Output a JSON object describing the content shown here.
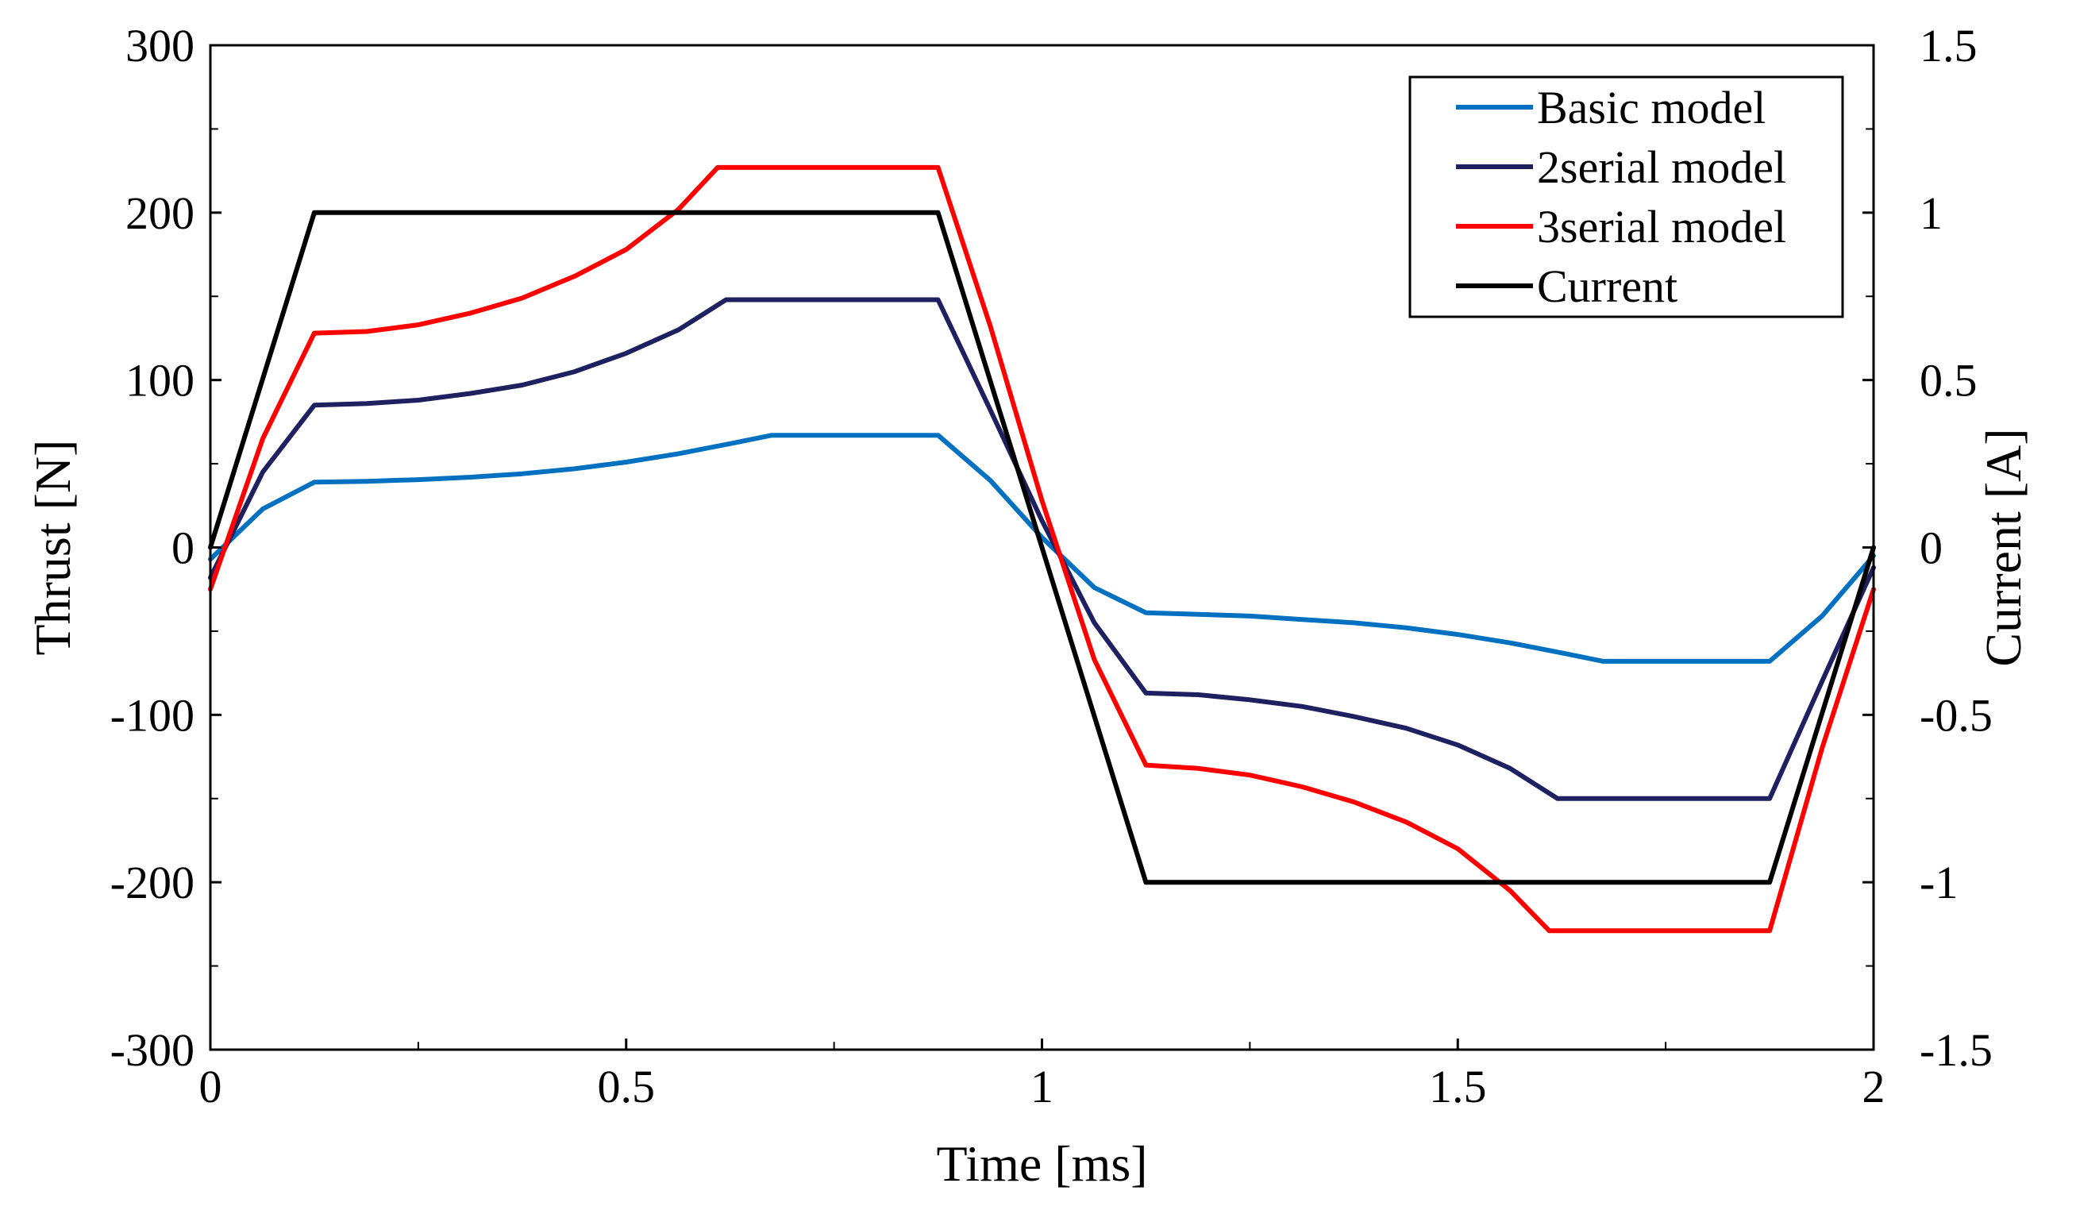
{
  "chart_data": {
    "type": "line",
    "title": "",
    "xlabel": "Time [ms]",
    "ylabel": "Thrust [N]",
    "y2label": "Current [A]",
    "xlim": [
      0,
      2
    ],
    "ylim": [
      -300,
      300
    ],
    "y2lim": [
      -1.5,
      1.5
    ],
    "grid": false,
    "legend_position": "top-right",
    "x_ticks": [
      0,
      0.5,
      1,
      1.5,
      2
    ],
    "x_tick_labels": [
      "0",
      "0.5",
      "1",
      "1.5",
      "2"
    ],
    "y_ticks": [
      300,
      200,
      100,
      0,
      -100,
      -200,
      -300
    ],
    "y_tick_labels": [
      "300",
      "200",
      "100",
      "0",
      "-100",
      "-200",
      "-300"
    ],
    "y2_ticks": [
      1.5,
      1,
      0.5,
      0,
      -0.5,
      -1,
      -1.5
    ],
    "y2_tick_labels": [
      "1.5",
      "1",
      "0.5",
      "0",
      "-0.5",
      "-1",
      "-1.5"
    ],
    "series": [
      {
        "name": "Basic model",
        "axis": "left",
        "color": "#0070c0",
        "x": [
          0,
          0.063,
          0.125,
          0.188,
          0.25,
          0.313,
          0.375,
          0.438,
          0.5,
          0.563,
          0.625,
          0.675,
          0.75,
          0.875,
          0.938,
          1.0,
          1.063,
          1.125,
          1.188,
          1.25,
          1.313,
          1.375,
          1.438,
          1.5,
          1.563,
          1.625,
          1.675,
          1.75,
          1.875,
          1.938,
          2.0
        ],
        "y": [
          -7,
          23,
          39,
          39.5,
          40.5,
          42,
          44,
          47,
          51,
          56,
          62,
          67,
          67,
          67,
          40,
          6,
          -24,
          -39,
          -40,
          -41,
          -43,
          -45,
          -48,
          -52,
          -57,
          -63,
          -68,
          -68,
          -68,
          -41,
          -5
        ]
      },
      {
        "name": "2serial model",
        "axis": "left",
        "color": "#1f2060",
        "x": [
          0,
          0.063,
          0.125,
          0.188,
          0.25,
          0.313,
          0.375,
          0.438,
          0.5,
          0.563,
          0.62,
          0.75,
          0.875,
          0.938,
          1.0,
          1.063,
          1.125,
          1.188,
          1.25,
          1.313,
          1.375,
          1.438,
          1.5,
          1.563,
          1.62,
          1.75,
          1.875,
          1.938,
          2.0
        ],
        "y": [
          -18,
          45,
          85,
          86,
          88,
          92,
          97,
          105,
          116,
          130,
          148,
          148,
          148,
          82,
          16,
          -45,
          -87,
          -88,
          -91,
          -95,
          -101,
          -108,
          -118,
          -132,
          -150,
          -150,
          -150,
          -80,
          -12
        ]
      },
      {
        "name": "3serial model",
        "axis": "left",
        "color": "#ff0000",
        "x": [
          0,
          0.063,
          0.125,
          0.188,
          0.25,
          0.313,
          0.375,
          0.438,
          0.5,
          0.563,
          0.61,
          0.75,
          0.875,
          0.938,
          1.0,
          1.063,
          1.125,
          1.188,
          1.25,
          1.313,
          1.375,
          1.438,
          1.5,
          1.563,
          1.61,
          1.75,
          1.875,
          1.938,
          2.0
        ],
        "y": [
          -25,
          65,
          128,
          129,
          133,
          140,
          149,
          162,
          178,
          202,
          227,
          227,
          227,
          132,
          28,
          -67,
          -130,
          -132,
          -136,
          -143,
          -152,
          -164,
          -180,
          -205,
          -229,
          -229,
          -229,
          -120,
          -25
        ]
      },
      {
        "name": "Current",
        "axis": "right",
        "color": "#000000",
        "x": [
          0,
          0.125,
          0.875,
          1.125,
          1.875,
          2.0
        ],
        "y": [
          0,
          1,
          1,
          -1,
          -1,
          0
        ]
      }
    ]
  }
}
